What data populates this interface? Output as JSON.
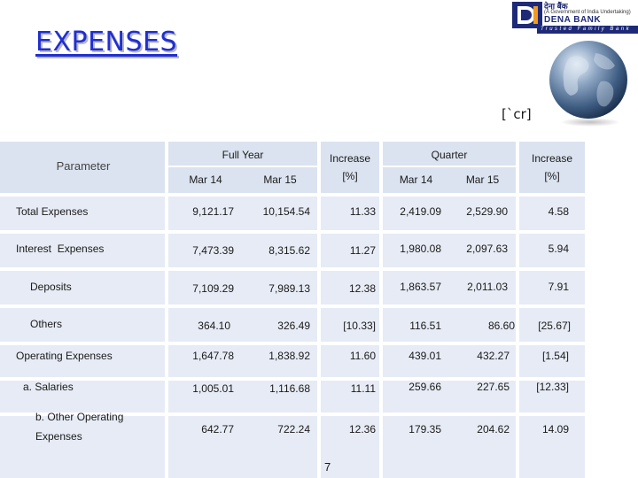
{
  "slide": {
    "title": "EXPENSES",
    "unit": "[`cr]",
    "page_number": "7"
  },
  "logo": {
    "hindi": "देना बैंक",
    "subtitle": "(A Government of India Undertaking)",
    "name": "DENA BANK",
    "tagline": "Trusted Family Bank"
  },
  "table": {
    "parameter_header": "Parameter",
    "full_year_header": "Full Year",
    "quarter_header": "Quarter",
    "increase_header": "Increase",
    "increase_unit": "[%]",
    "col_mar14": "Mar 14",
    "col_mar15": "Mar 15",
    "rows": [
      {
        "label": "Total Expenses",
        "fy14": "9,121.17",
        "fy15": "10,154.54",
        "fy_inc": "11.33",
        "q14": "2,419.09",
        "q15": "2,529.90",
        "q_inc": "4.58"
      },
      {
        "label": "Interest  Expenses",
        "fy14": "7,473.39",
        "fy15": "8,315.62",
        "fy_inc": "11.27",
        "q14": "1,980.08",
        "q15": "2,097.63",
        "q_inc": "5.94"
      },
      {
        "label": "Deposits",
        "fy14": "7,109.29",
        "fy15": "7,989.13",
        "fy_inc": "12.38",
        "q14": "1,863.57",
        "q15": "2,011.03",
        "q_inc": "7.91"
      },
      {
        "label": "Others",
        "fy14": "364.10",
        "fy15": "326.49",
        "fy_inc": "[10.33]",
        "q14": "116.51",
        "q15": "86.60",
        "q_inc": "[25.67]"
      },
      {
        "label": "Operating Expenses",
        "fy14": "1,647.78",
        "fy15": "1,838.92",
        "fy_inc": "11.60",
        "q14": "439.01",
        "q15": "432.27",
        "q_inc": "[1.54]"
      },
      {
        "label": "a. Salaries",
        "fy14": "1,005.01",
        "fy15": "1,116.68",
        "fy_inc": "11.11",
        "q14": "259.66",
        "q15": "227.65",
        "q_inc": "[12.33]"
      },
      {
        "label_line1": "b. Other Operating",
        "label_line2": "Expenses",
        "fy14": "642.77",
        "fy15": "722.24",
        "fy_inc": "12.36",
        "q14": "179.35",
        "q15": "204.62",
        "q_inc": "14.09"
      }
    ]
  },
  "colors": {
    "title": "#1f2fd4",
    "header_fill": "#dbe3f0",
    "row_fill": "#e6ebf5",
    "brand": "#1e2a78"
  }
}
